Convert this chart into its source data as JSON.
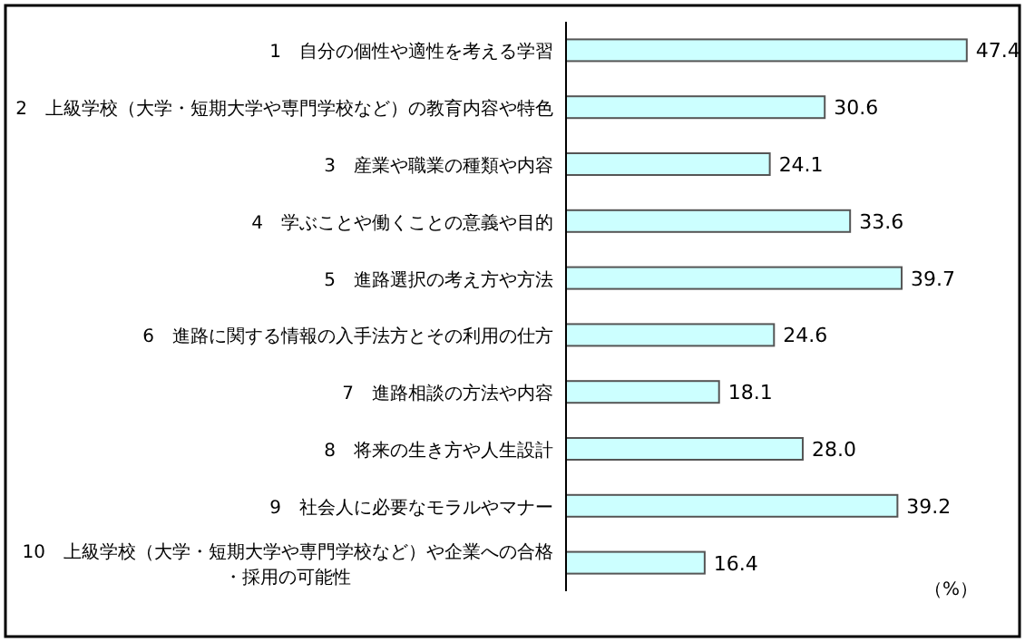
{
  "chart_data": {
    "type": "bar",
    "orientation": "horizontal",
    "categories": [
      "1　自分の個性や適性を考える学習",
      "2　上級学校（大学・短期大学や専門学校など）の教育内容や特色",
      "3　産業や職業の種類や内容",
      "4　学ぶことや働くことの意義や目的",
      "5　進路選択の考え方や方法",
      "6　進路に関する情報の入手法方とその利用の仕方",
      "7　進路相談の方法や内容",
      "8　将来の生き方や人生設計",
      "9　社会人に必要なモラルやマナー",
      "10　上級学校（大学・短期大学や専門学校など）や企業への合格・採用の可能性"
    ],
    "values": [
      47.4,
      30.6,
      24.1,
      33.6,
      39.7,
      24.6,
      18.1,
      28.0,
      39.2,
      16.4
    ],
    "color": "#ccffff",
    "xlim": [
      0,
      53
    ],
    "value_labels": [
      "47.4",
      "30.6",
      "24.1",
      "33.6",
      "39.7",
      "24.6",
      "18.1",
      "28.0",
      "39.2",
      "16.4"
    ],
    "annotations": [
      "（%）"
    ]
  }
}
